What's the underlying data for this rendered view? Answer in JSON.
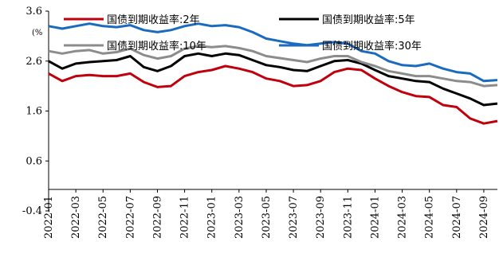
{
  "chart_data": {
    "type": "line",
    "unit_label": "(%",
    "ylim": [
      -0.4,
      3.6
    ],
    "yticks": [
      "3.6",
      "2.6",
      "1.6",
      "0.6",
      "-0.4"
    ],
    "ytick_values": [
      3.6,
      2.6,
      1.6,
      0.6,
      -0.4
    ],
    "xticks": [
      "2022-01",
      "2022-03",
      "2022-05",
      "2022-07",
      "2022-09",
      "2022-11",
      "2023-01",
      "2023-03",
      "2023-05",
      "2023-07",
      "2023-09",
      "2023-11",
      "2024-01",
      "2024-03",
      "2024-05",
      "2024-07",
      "2024-09"
    ],
    "x": [
      "2022-01",
      "2022-02",
      "2022-03",
      "2022-04",
      "2022-05",
      "2022-06",
      "2022-07",
      "2022-08",
      "2022-09",
      "2022-10",
      "2022-11",
      "2022-12",
      "2023-01",
      "2023-02",
      "2023-03",
      "2023-04",
      "2023-05",
      "2023-06",
      "2023-07",
      "2023-08",
      "2023-09",
      "2023-10",
      "2023-11",
      "2023-12",
      "2024-01",
      "2024-02",
      "2024-03",
      "2024-04",
      "2024-05",
      "2024-06",
      "2024-07",
      "2024-08",
      "2024-09",
      "2024-10"
    ],
    "legend_position": "top",
    "grid": false,
    "series": [
      {
        "name": "国债到期收益率:2年",
        "color": "#c0000c",
        "values": [
          2.35,
          2.2,
          2.3,
          2.32,
          2.3,
          2.3,
          2.35,
          2.18,
          2.08,
          2.1,
          2.3,
          2.38,
          2.42,
          2.5,
          2.45,
          2.38,
          2.25,
          2.2,
          2.1,
          2.12,
          2.2,
          2.38,
          2.45,
          2.42,
          2.25,
          2.1,
          1.98,
          1.9,
          1.88,
          1.72,
          1.68,
          1.45,
          1.35,
          1.4
        ]
      },
      {
        "name": "国债到期收益率:5年",
        "color": "#000000",
        "values": [
          2.6,
          2.45,
          2.55,
          2.58,
          2.6,
          2.62,
          2.7,
          2.48,
          2.4,
          2.5,
          2.7,
          2.75,
          2.7,
          2.75,
          2.72,
          2.62,
          2.52,
          2.48,
          2.42,
          2.4,
          2.5,
          2.6,
          2.62,
          2.55,
          2.42,
          2.3,
          2.25,
          2.2,
          2.18,
          2.05,
          1.95,
          1.85,
          1.72,
          1.75
        ]
      },
      {
        "name": "国债到期收益率:10年",
        "color": "#8c8c8c",
        "values": [
          2.8,
          2.75,
          2.8,
          2.82,
          2.75,
          2.78,
          2.85,
          2.72,
          2.65,
          2.7,
          2.85,
          2.9,
          2.88,
          2.9,
          2.86,
          2.8,
          2.7,
          2.66,
          2.62,
          2.58,
          2.65,
          2.7,
          2.7,
          2.58,
          2.5,
          2.4,
          2.35,
          2.3,
          2.3,
          2.25,
          2.2,
          2.18,
          2.1,
          2.12
        ]
      },
      {
        "name": "国债到期收益率:30年",
        "color": "#1a6bbf",
        "values": [
          3.3,
          3.25,
          3.3,
          3.35,
          3.3,
          3.28,
          3.32,
          3.22,
          3.18,
          3.22,
          3.3,
          3.35,
          3.3,
          3.32,
          3.28,
          3.18,
          3.05,
          3.0,
          2.95,
          2.92,
          2.95,
          2.98,
          2.95,
          2.8,
          2.75,
          2.6,
          2.52,
          2.5,
          2.55,
          2.45,
          2.38,
          2.35,
          2.2,
          2.22
        ]
      }
    ]
  }
}
